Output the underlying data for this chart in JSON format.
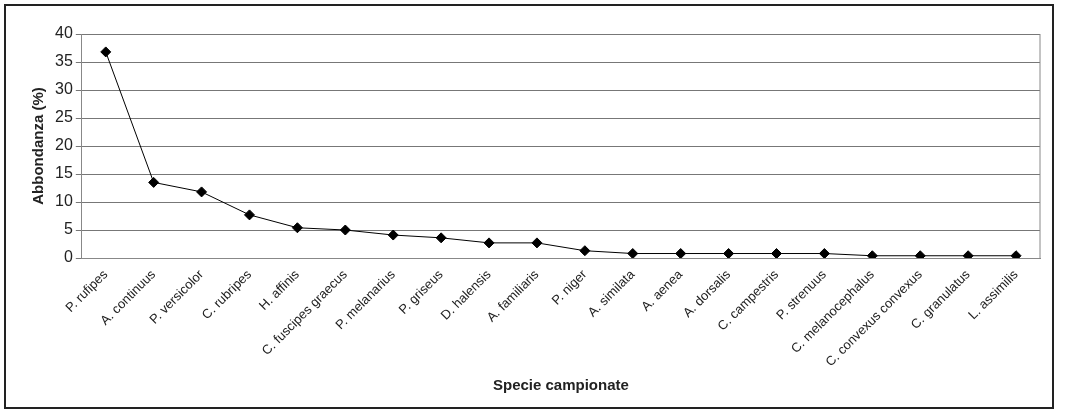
{
  "chart_data": {
    "type": "line",
    "xlabel": "Specie campionate",
    "ylabel": "Abbondanza (%)",
    "categories": [
      "P. rufipes",
      "A. continuus",
      "P. versicolor",
      "C. rubripes",
      "H. affinis",
      "C. fuscipes graecus",
      "P. melanarius",
      "P. griseus",
      "D. halensis",
      "A. familiaris",
      "P. niger",
      "A. similata",
      "A. aenea",
      "A. dorsalis",
      "C. campestris",
      "P. strenuus",
      "C. melanocephalus",
      "C. convexus convexus",
      "C. granulatus",
      "L. assimilis"
    ],
    "series": [
      {
        "color": "#000000",
        "values": [
          36.8,
          13.5,
          11.8,
          7.7,
          5.4,
          5.0,
          4.1,
          3.6,
          2.7,
          2.7,
          1.3,
          0.8,
          0.8,
          0.8,
          0.8,
          0.8,
          0.4,
          0.4,
          0.4,
          0.4
        ]
      }
    ],
    "ylim": [
      0,
      40
    ],
    "yticks": [
      0,
      5,
      10,
      15,
      20,
      25,
      30,
      35,
      40
    ],
    "grid": "y",
    "legend": false,
    "marker": "diamond",
    "line_style": "solid"
  }
}
